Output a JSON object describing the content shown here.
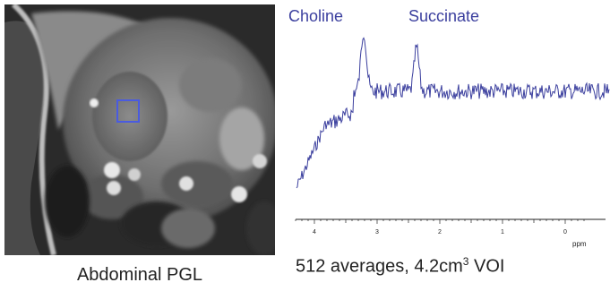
{
  "mri": {
    "caption": "Abdominal PGL"
  },
  "spectrum": {
    "peaks": [
      {
        "label": "Choline",
        "ppm": 3.2
      },
      {
        "label": "Succinate",
        "ppm": 2.4
      }
    ],
    "x_ticks": [
      "4",
      "3",
      "2",
      "1",
      "0"
    ],
    "x_unit": "ppm",
    "trace_color": "#3b3f9e",
    "label_color": "#3b3f9e",
    "caption_main": "512 averages, 4.2cm",
    "caption_sup": "3",
    "caption_tail": " VOI"
  }
}
